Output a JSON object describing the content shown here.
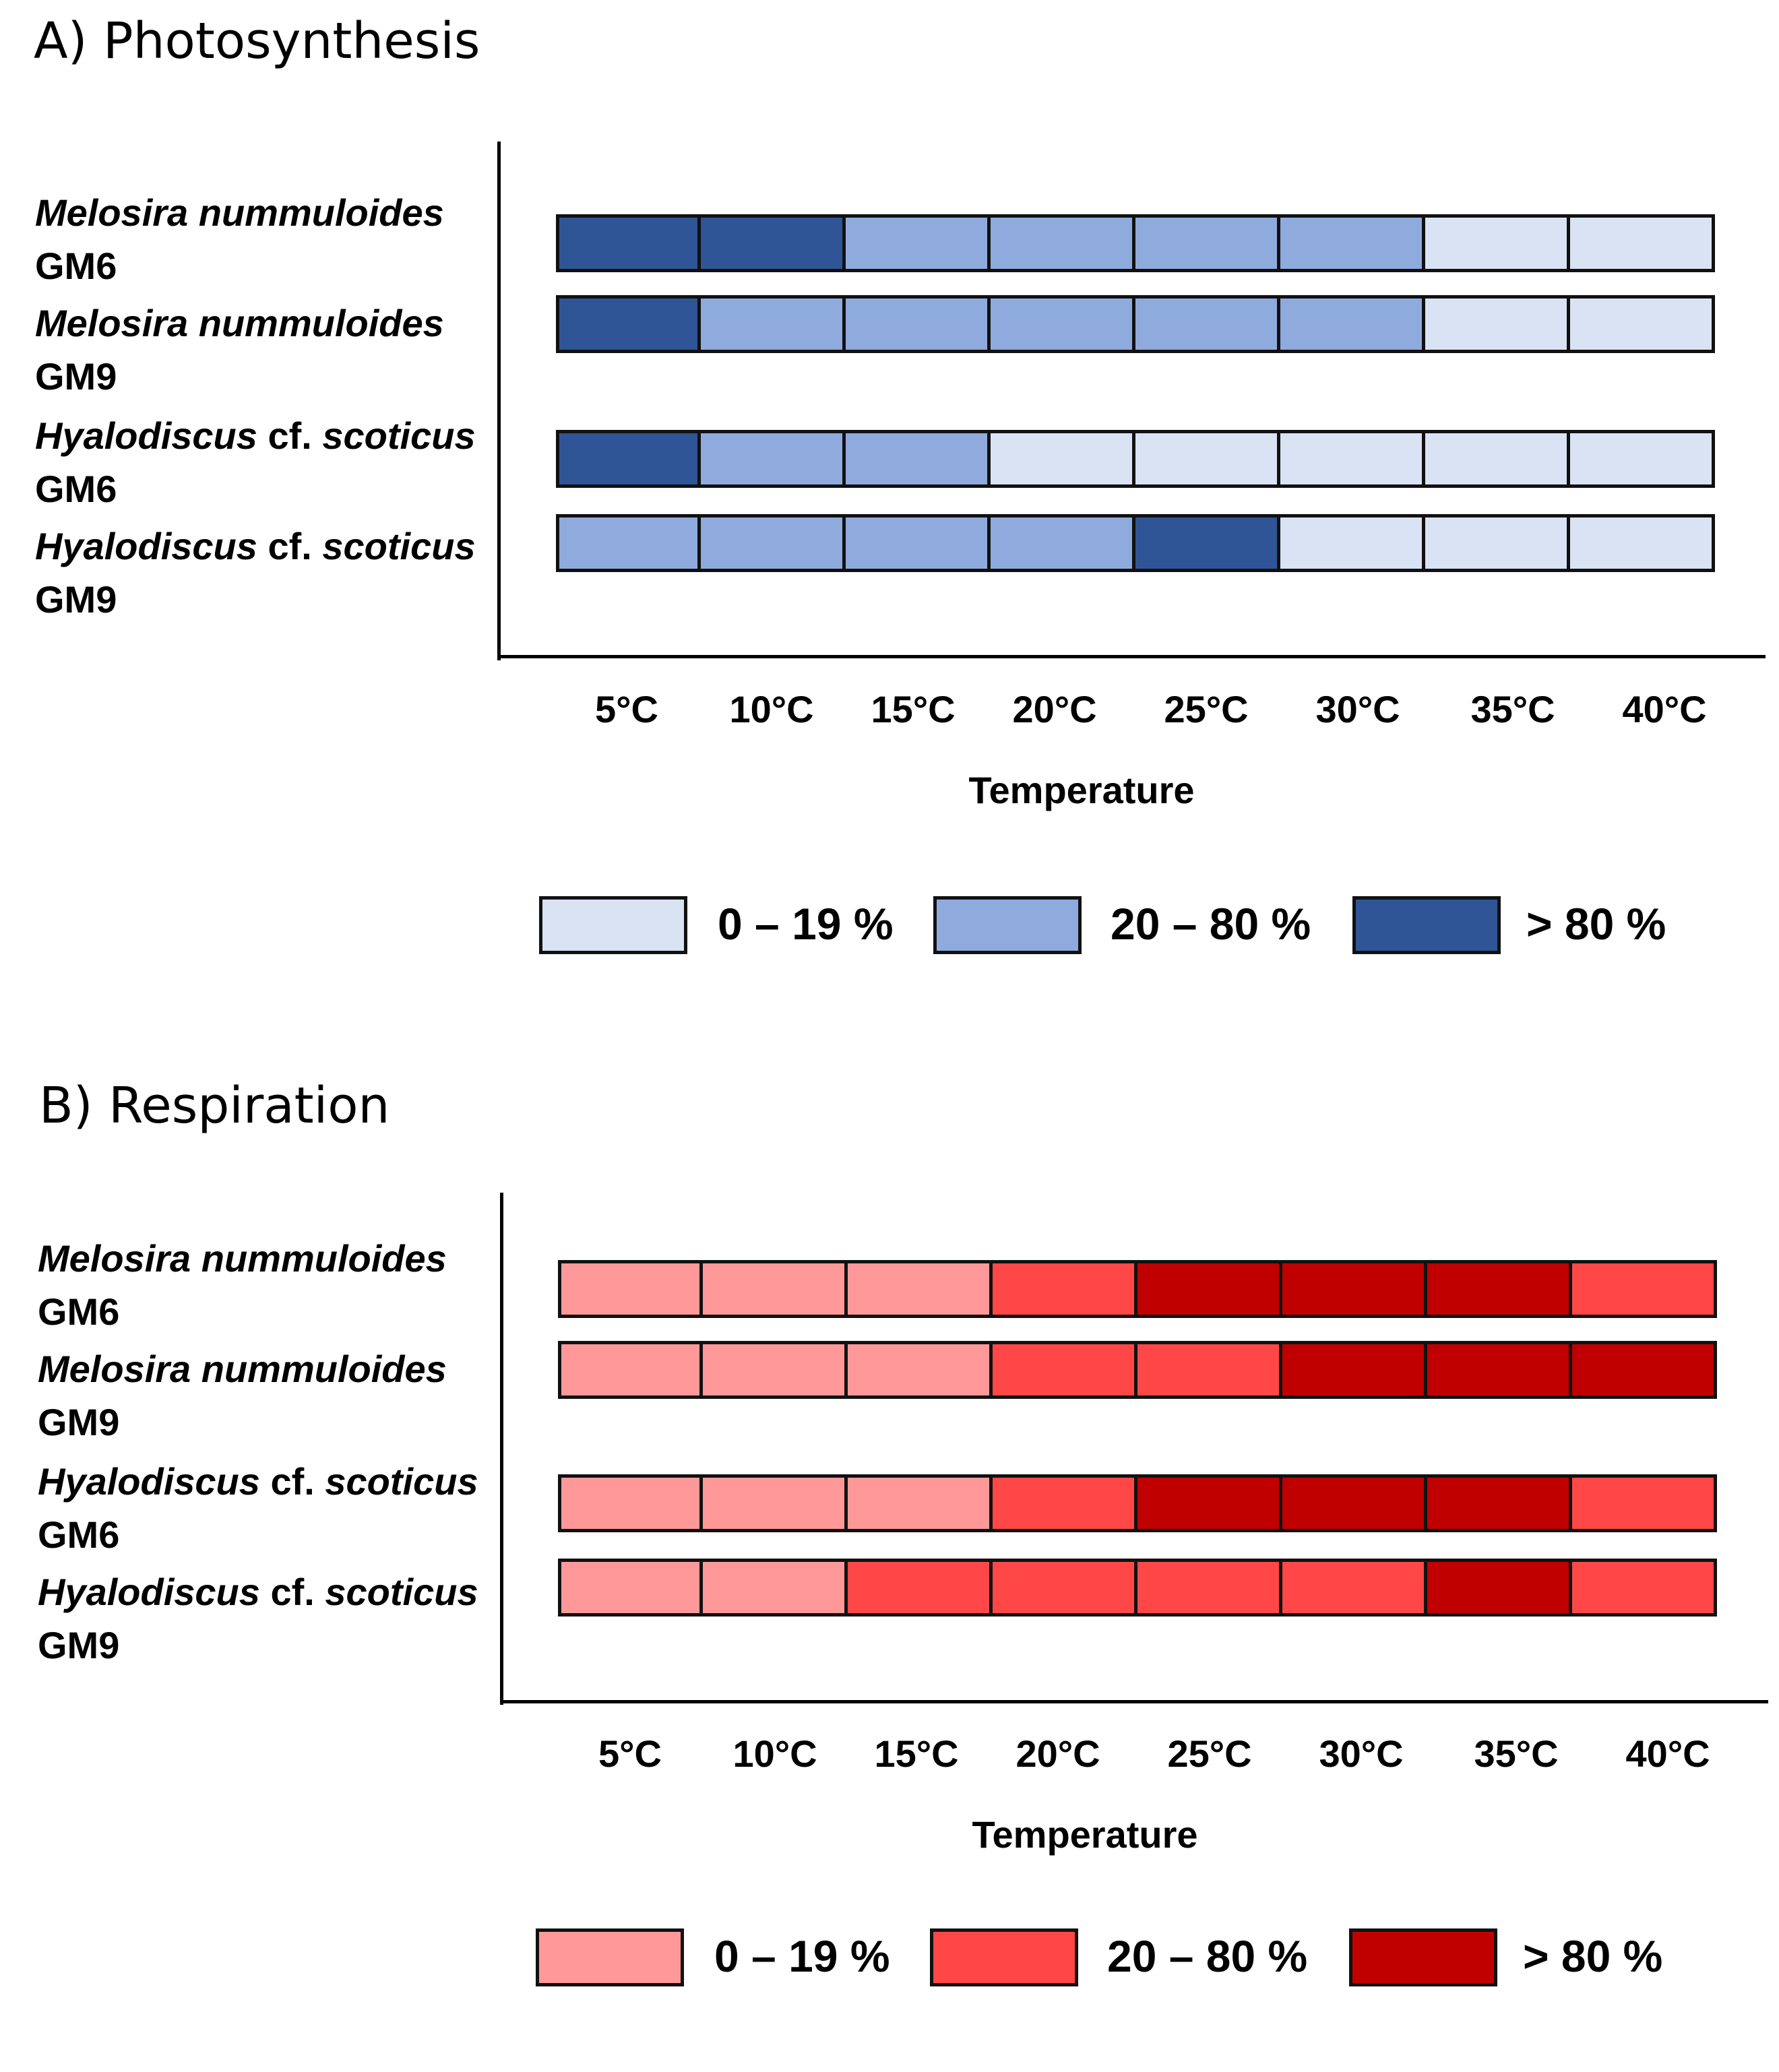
{
  "colors": {
    "photo_low": "#dae3f3",
    "photo_mid": "#8faadc",
    "photo_high": "#2f5597",
    "resp_low": "#ff9999",
    "resp_mid": "#ff4747",
    "resp_high": "#c00000",
    "border": "#111111"
  },
  "chart_data": [
    {
      "type": "heatmap",
      "title": "A) Photosynthesis",
      "xlabel": "Temperature",
      "ylabel": "",
      "categories": [
        "5°C",
        "10°C",
        "15°C",
        "20°C",
        "25°C",
        "30°C",
        "35°C",
        "40°C"
      ],
      "rows": [
        {
          "species": "Melosira nummuloides",
          "strain": "GM6",
          "levels": [
            "high",
            "high",
            "mid",
            "mid",
            "mid",
            "mid",
            "low",
            "low"
          ]
        },
        {
          "species": "Melosira nummuloides",
          "strain": "GM9",
          "levels": [
            "high",
            "mid",
            "mid",
            "mid",
            "mid",
            "mid",
            "low",
            "low"
          ]
        },
        {
          "species_main": "Hyalodiscus",
          "species_cf": "cf.",
          "species_epithet": "scoticus",
          "strain": "GM6",
          "levels": [
            "high",
            "mid",
            "mid",
            "low",
            "low",
            "low",
            "low",
            "low"
          ]
        },
        {
          "species_main": "Hyalodiscus",
          "species_cf": "cf.",
          "species_epithet": "scoticus",
          "strain": "GM9",
          "levels": [
            "mid",
            "mid",
            "mid",
            "mid",
            "high",
            "low",
            "low",
            "low"
          ]
        }
      ],
      "legend": [
        {
          "level": "low",
          "label": "0 – 19 %"
        },
        {
          "level": "mid",
          "label": "20 – 80 %"
        },
        {
          "level": "high",
          "label": "> 80 %"
        }
      ],
      "palette": "photo"
    },
    {
      "type": "heatmap",
      "title": "B) Respiration",
      "xlabel": "Temperature",
      "ylabel": "",
      "categories": [
        "5°C",
        "10°C",
        "15°C",
        "20°C",
        "25°C",
        "30°C",
        "35°C",
        "40°C"
      ],
      "rows": [
        {
          "species": "Melosira nummuloides",
          "strain": "GM6",
          "levels": [
            "low",
            "low",
            "low",
            "mid",
            "high",
            "high",
            "high",
            "mid"
          ]
        },
        {
          "species": "Melosira nummuloides",
          "strain": "GM9",
          "levels": [
            "low",
            "low",
            "low",
            "mid",
            "mid",
            "high",
            "high",
            "high"
          ]
        },
        {
          "species_main": "Hyalodiscus",
          "species_cf": "cf.",
          "species_epithet": "scoticus",
          "strain": "GM6",
          "levels": [
            "low",
            "low",
            "low",
            "mid",
            "high",
            "high",
            "high",
            "mid"
          ]
        },
        {
          "species_main": "Hyalodiscus",
          "species_cf": "cf.",
          "species_epithet": "scoticus",
          "strain": "GM9",
          "levels": [
            "low",
            "low",
            "mid",
            "mid",
            "mid",
            "mid",
            "high",
            "mid"
          ]
        }
      ],
      "legend": [
        {
          "level": "low",
          "label": "0 – 19 %"
        },
        {
          "level": "mid",
          "label": "20 – 80 %"
        },
        {
          "level": "high",
          "label": "> 80 %"
        }
      ],
      "palette": "resp"
    }
  ]
}
